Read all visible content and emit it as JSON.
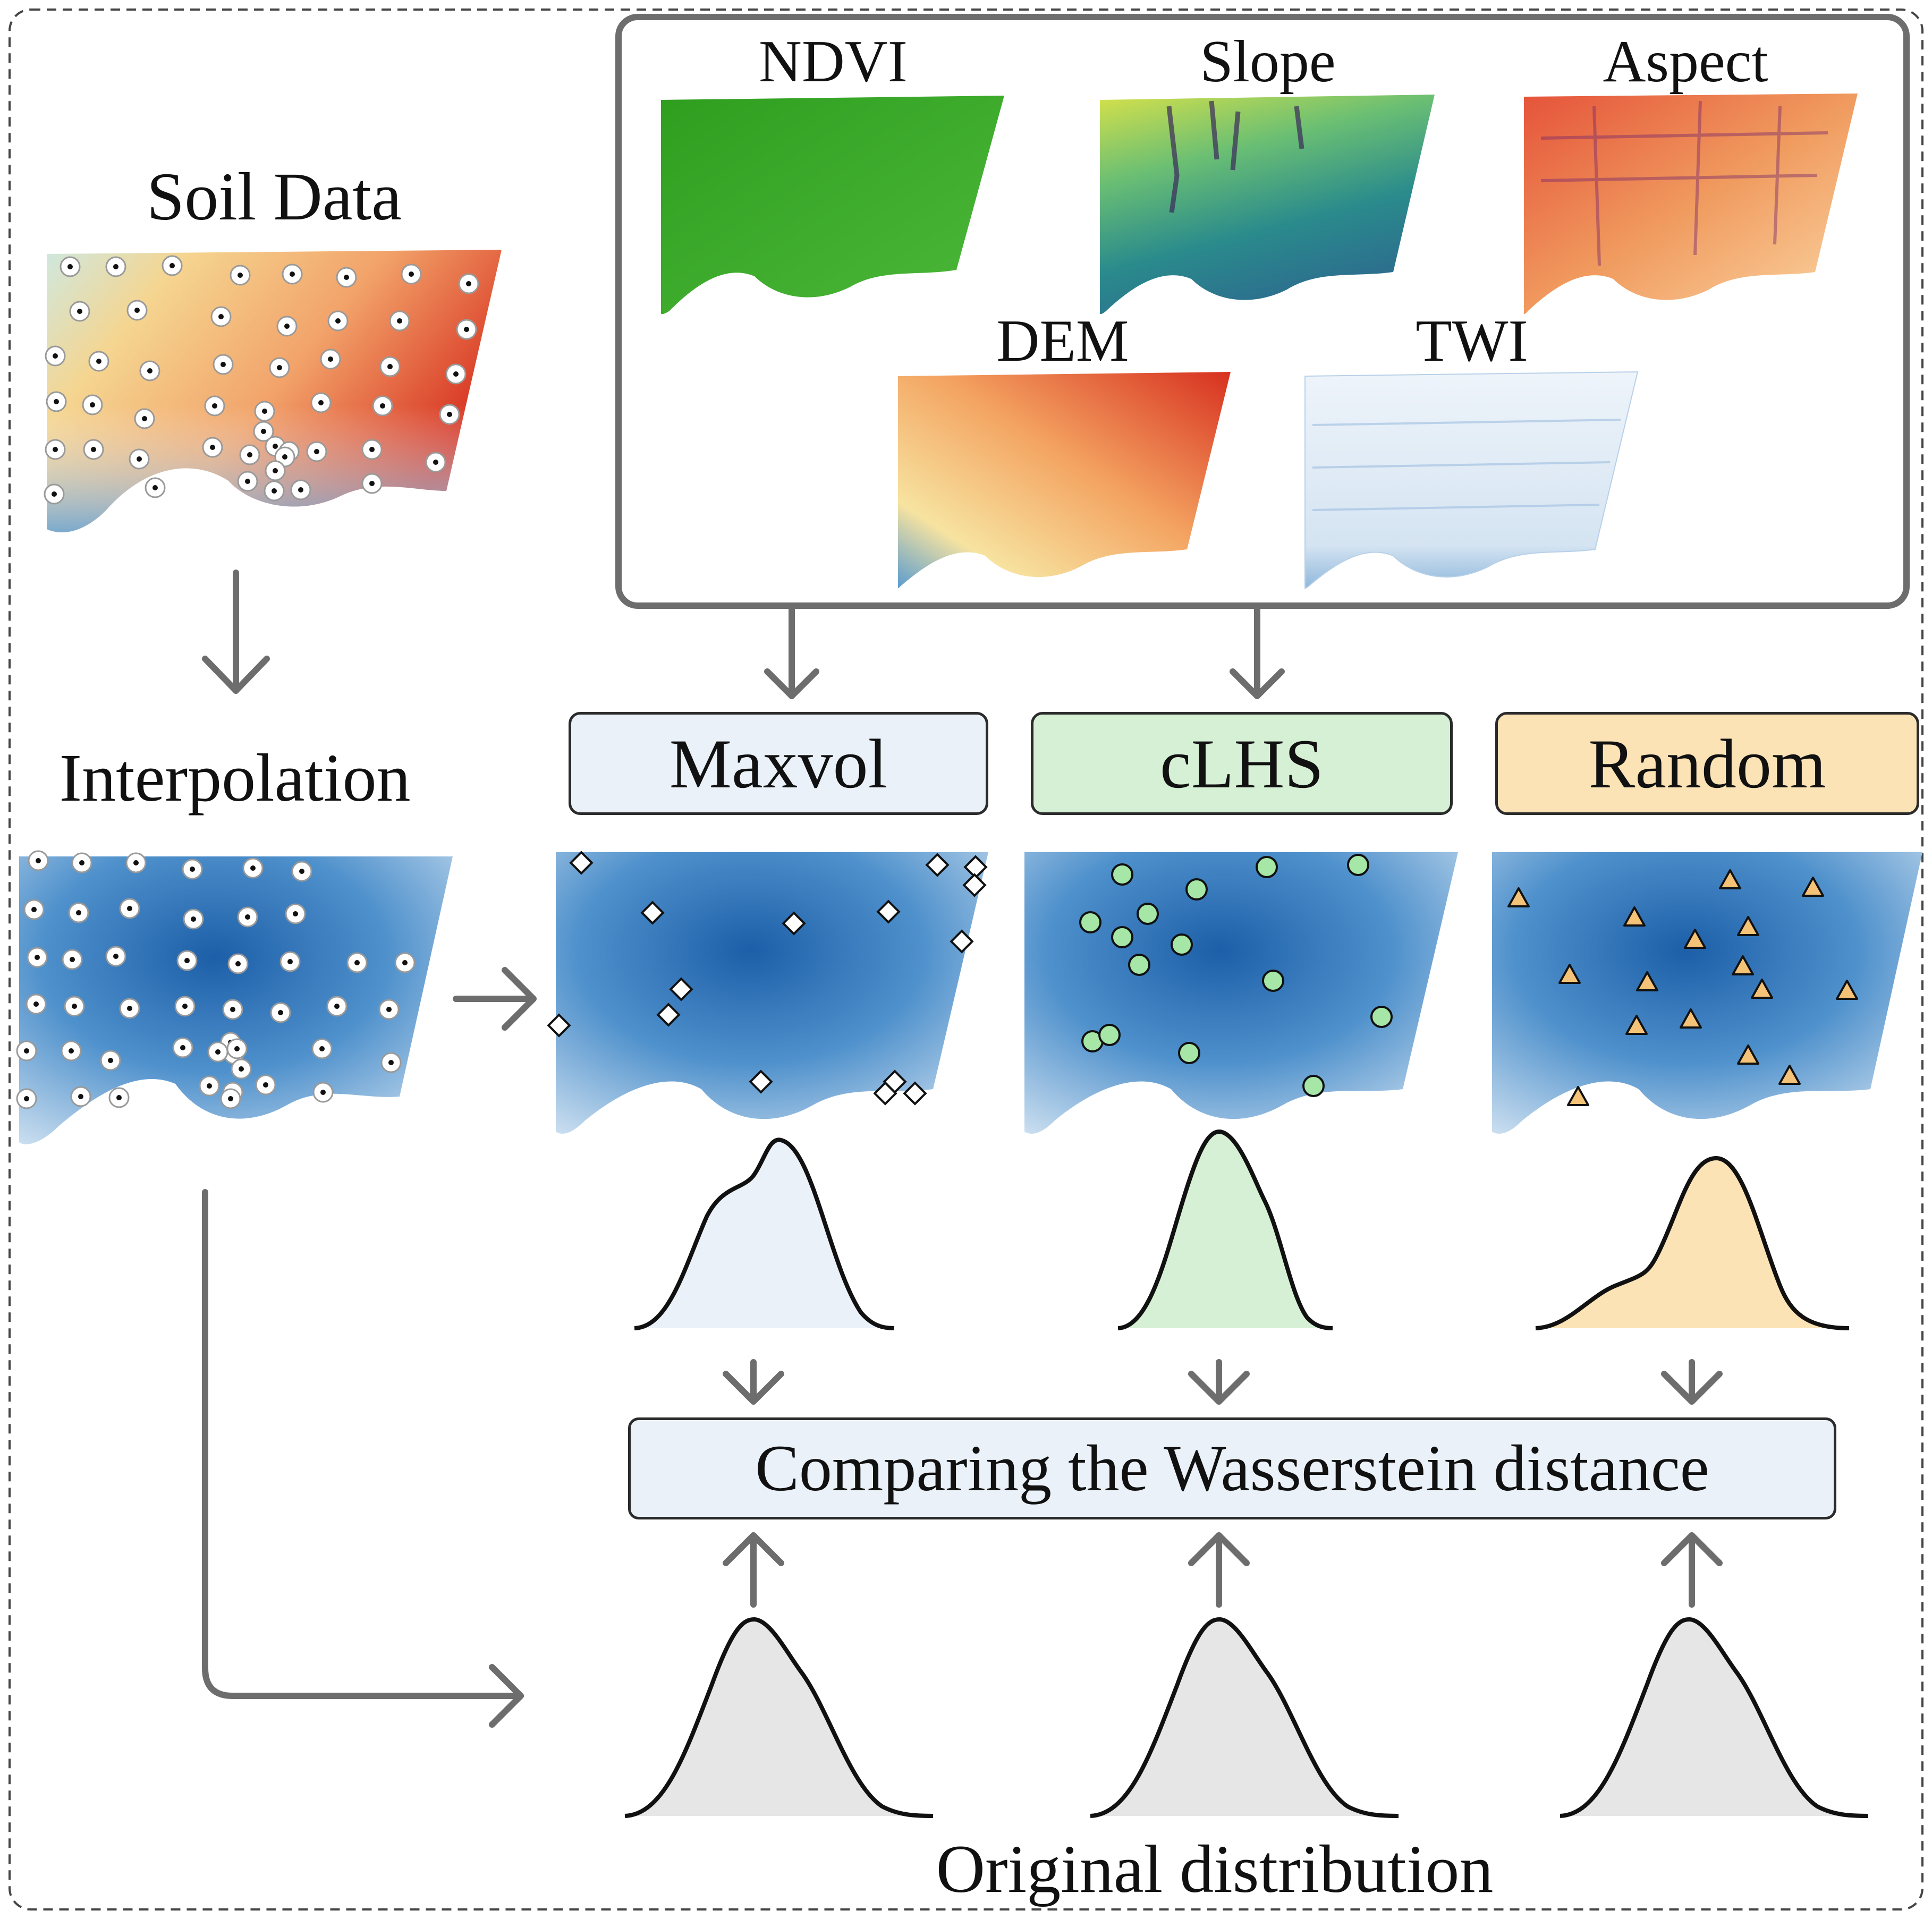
{
  "labels": {
    "soil_data": "Soil Data",
    "interpolation": "Interpolation",
    "original_distribution": "Original distribution"
  },
  "covariates": [
    {
      "name": "NDVI"
    },
    {
      "name": "Slope"
    },
    {
      "name": "Aspect"
    },
    {
      "name": "DEM"
    },
    {
      "name": "TWI"
    }
  ],
  "methods": [
    {
      "name": "Maxvol",
      "color": "#eaf1f8",
      "marker": "diamond-icon"
    },
    {
      "name": "cLHS",
      "color": "#d6f0d6",
      "marker": "circle-icon"
    },
    {
      "name": "Random",
      "color": "#fbe3b6",
      "marker": "triangle-icon"
    }
  ],
  "comparison": {
    "label": "Comparing the Wasserstein distance"
  },
  "colors": {
    "arrow": "#6d6d6d",
    "interpolation_blue": "#2f6fb3",
    "soil_red": "#d7301f",
    "original_fill": "#e6e6e6",
    "ndvi_green": "#3aa72a",
    "twi_blue": "#dbe7f3"
  }
}
